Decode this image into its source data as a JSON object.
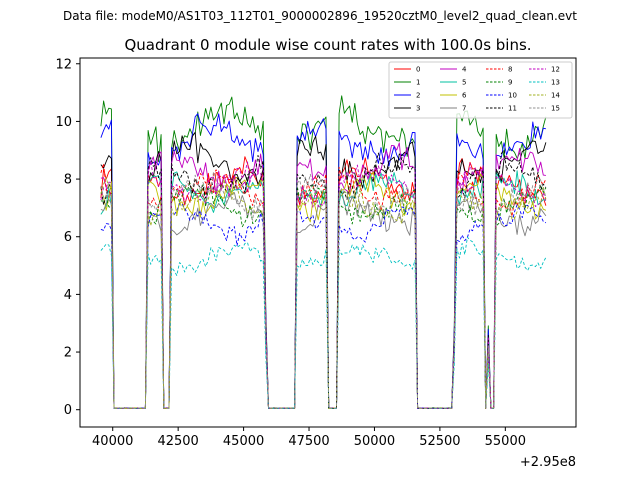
{
  "figure": {
    "suptitle": "Data file: modeM0/AS1T03_112T01_9000002896_19520cztM0_level2_quad_clean.evt"
  },
  "chart_data": {
    "type": "line",
    "title": "Quadrant 0 module wise count rates with 100.0s bins.",
    "xlabel": "",
    "ylabel": "",
    "x_offset_label": "+2.95e8",
    "x_tick_labels": [
      "40000",
      "42500",
      "45000",
      "47500",
      "50000",
      "52500",
      "55000"
    ],
    "x_ticks": [
      40000,
      42500,
      45000,
      47500,
      50000,
      52500,
      55000
    ],
    "y_tick_labels": [
      "0",
      "2",
      "4",
      "6",
      "8",
      "10",
      "12"
    ],
    "y_ticks": [
      0,
      2,
      4,
      6,
      8,
      10,
      12
    ],
    "xlim": [
      38750,
      57700
    ],
    "ylim": [
      -0.6,
      12.2
    ],
    "grid": false,
    "legend_position": "top-right",
    "x": [
      39550,
      39650,
      39750,
      39850,
      39950,
      40050,
      40150,
      40250,
      40350,
      40450,
      40550,
      40650,
      40750,
      40850,
      40950,
      41050,
      41150,
      41250,
      41350,
      41450,
      41550,
      41650,
      41750,
      41850,
      41950,
      42050,
      42150,
      42250,
      42350,
      42450,
      42550,
      42650,
      42750,
      42850,
      42950,
      43050,
      43150,
      43250,
      43350,
      43450,
      43550,
      43650,
      43750,
      43850,
      43950,
      44050,
      44150,
      44250,
      44350,
      44450,
      44550,
      44650,
      44750,
      44850,
      44950,
      45050,
      45150,
      45250,
      45350,
      45450,
      45550,
      45650,
      45750,
      45850,
      45950,
      46050,
      46150,
      46250,
      46350,
      46450,
      46550,
      46650,
      46750,
      46850,
      46950,
      47050,
      47150,
      47250,
      47350,
      47450,
      47550,
      47650,
      47750,
      47850,
      47950,
      48050,
      48150,
      48250,
      48350,
      48450,
      48550,
      48650,
      48750,
      48850,
      48950,
      49050,
      49150,
      49250,
      49350,
      49450,
      49550,
      49650,
      49750,
      49850,
      49950,
      50050,
      50150,
      50250,
      50350,
      50450,
      50550,
      50650,
      50750,
      50850,
      50950,
      51050,
      51150,
      51250,
      51350,
      51450,
      51550,
      51650,
      51750,
      51850,
      51950,
      52050,
      52150,
      52250,
      52350,
      52450,
      52550,
      52650,
      52750,
      52850,
      52950,
      53050,
      53150,
      53250,
      53350,
      53450,
      53550,
      53650,
      53750,
      53850,
      53950,
      54050,
      54150,
      54250,
      54350,
      54450,
      54550,
      54650,
      54750,
      54850,
      54950,
      55050,
      55150,
      55250,
      55350,
      55450,
      55550,
      55650,
      55750,
      55850,
      55950,
      56050,
      56150,
      56250,
      56350,
      56450,
      56550
    ],
    "mask": [
      1,
      1,
      1,
      1,
      1,
      0,
      0,
      0,
      0,
      0,
      0,
      0,
      0,
      0,
      0,
      0,
      0,
      0,
      1,
      1,
      1,
      1,
      1,
      1,
      0,
      0,
      0,
      1,
      1,
      1,
      1,
      1,
      1,
      1,
      1,
      1,
      1,
      1,
      1,
      1,
      1,
      1,
      1,
      1,
      1,
      1,
      1,
      1,
      1,
      1,
      1,
      1,
      1,
      1,
      1,
      1,
      1,
      1,
      1,
      1,
      1,
      1,
      1,
      0,
      0,
      0,
      0,
      0,
      0,
      0,
      0,
      0,
      0,
      0,
      0,
      1,
      1,
      1,
      1,
      1,
      1,
      1,
      1,
      1,
      1,
      1,
      1,
      0,
      0,
      0,
      0,
      1,
      1,
      1,
      1,
      1,
      1,
      1,
      1,
      1,
      1,
      1,
      1,
      1,
      1,
      1,
      1,
      1,
      1,
      1,
      1,
      1,
      1,
      1,
      1,
      1,
      1,
      1,
      1,
      1,
      1,
      0,
      0,
      0,
      0,
      0,
      0,
      0,
      0,
      0,
      0,
      0,
      0,
      0,
      0,
      0,
      1,
      1,
      1,
      1,
      1,
      1,
      1,
      1,
      1,
      1,
      1,
      0,
      0,
      0,
      0,
      1,
      1,
      1,
      1,
      1,
      1,
      1,
      1,
      1,
      1,
      1,
      1,
      1,
      1,
      1,
      1,
      1,
      1,
      1,
      1,
      1
    ],
    "ramp": {
      "41450": 0.45,
      "42450": 0.3,
      "45850": 0.35,
      "47050": 0.3,
      "49350": 0.2,
      "51550": 0.35,
      "53050": 0.3,
      "54350": 0.3,
      "54750": 0.3
    },
    "series": [
      {
        "name": "0",
        "level": 7.9,
        "color": "#ff0000",
        "dash": false
      },
      {
        "name": "1",
        "level": 9.7,
        "color": "#008000",
        "dash": false
      },
      {
        "name": "2",
        "level": 9.3,
        "color": "#0000ff",
        "dash": false
      },
      {
        "name": "3",
        "level": 8.6,
        "color": "#000000",
        "dash": false
      },
      {
        "name": "4",
        "level": 8.3,
        "color": "#c000c0",
        "dash": false
      },
      {
        "name": "5",
        "level": 7.6,
        "color": "#00c0a0",
        "dash": false
      },
      {
        "name": "6",
        "level": 7.4,
        "color": "#c0c000",
        "dash": false
      },
      {
        "name": "7",
        "level": 6.8,
        "color": "#808080",
        "dash": false
      },
      {
        "name": "8",
        "level": 7.6,
        "color": "#ff0000",
        "dash": true
      },
      {
        "name": "9",
        "level": 7.1,
        "color": "#008000",
        "dash": true
      },
      {
        "name": "10",
        "level": 6.5,
        "color": "#0000ff",
        "dash": true
      },
      {
        "name": "11",
        "level": 8.0,
        "color": "#000000",
        "dash": true
      },
      {
        "name": "12",
        "level": 7.8,
        "color": "#c000c0",
        "dash": true
      },
      {
        "name": "13",
        "level": 5.3,
        "color": "#00c0c0",
        "dash": true
      },
      {
        "name": "14",
        "level": 7.2,
        "color": "#a0b020",
        "dash": true
      },
      {
        "name": "15",
        "level": 7.4,
        "color": "#909090",
        "dash": true
      }
    ]
  }
}
